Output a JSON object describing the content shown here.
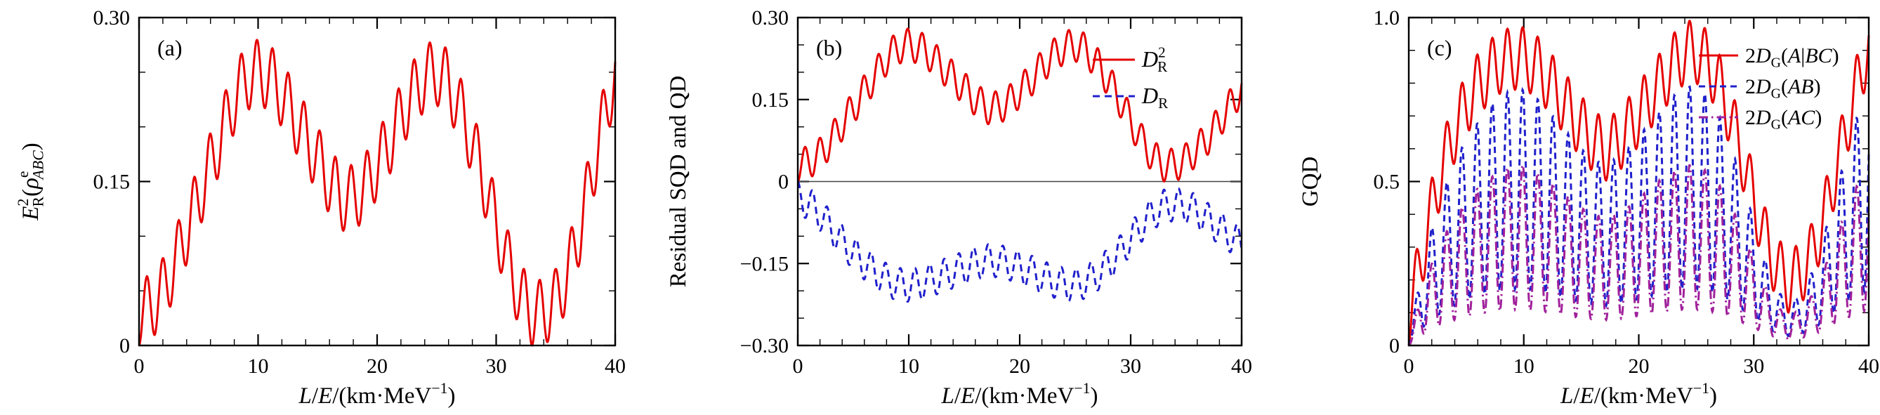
{
  "figure": {
    "background": "#ffffff",
    "frame_color": "#000000",
    "zero_line_color": "#444444"
  },
  "chart_data": [
    {
      "type": "line",
      "tag": "(a)",
      "xlabel_text": "L/E/(km·MeV^-1)",
      "xlabel_segments": [
        {
          "t": "L",
          "i": 1
        },
        {
          "t": "/"
        },
        {
          "t": "E",
          "i": 1
        },
        {
          "t": "/(km·MeV"
        },
        {
          "sup": "−1"
        },
        {
          "t": ")"
        }
      ],
      "ylabel_text": "E_R^2(rho_ABC^e)",
      "ylabel_segments": [
        {
          "t": "E",
          "i": 1
        },
        {
          "ss": {
            "top": "2",
            "bot": "R"
          }
        },
        {
          "t": "("
        },
        {
          "t": "ρ",
          "i": 1
        },
        {
          "ss": {
            "top": "e",
            "bot": "ABC",
            "bi": 1
          }
        },
        {
          "t": ")"
        }
      ],
      "x_axis": {
        "min": 0,
        "max": 40,
        "major": [
          0,
          10,
          20,
          30,
          40
        ],
        "labels": [
          "0",
          "10",
          "20",
          "30",
          "40"
        ],
        "minor_step": 2
      },
      "y_axis": {
        "min": 0,
        "max": 0.3,
        "major": [
          0,
          0.15,
          0.3
        ],
        "labels": [
          "0",
          "0.15",
          "0.30"
        ],
        "minor_step": 0.05
      },
      "zero_line": false,
      "grid": false,
      "series": [
        {
          "name": "E_R^2(rho_ABC^e)",
          "color": "#e50000",
          "dash": "none",
          "width": 3,
          "envelope_step": 1,
          "envelope": [
            0,
            0.005,
            0.02,
            0.045,
            0.075,
            0.105,
            0.135,
            0.165,
            0.195,
            0.215,
            0.22,
            0.215,
            0.2,
            0.18,
            0.16,
            0.14,
            0.12,
            0.105,
            0.105,
            0.115,
            0.135,
            0.155,
            0.18,
            0.2,
            0.215,
            0.22,
            0.21,
            0.185,
            0.155,
            0.12,
            0.08,
            0.045,
            0.015,
            0,
            0,
            0.01,
            0.035,
            0.075,
            0.125,
            0.175,
            0.22
          ],
          "model": {
            "kind": "add",
            "amp": 0.06,
            "period": 1.32,
            "phase": 0,
            "sign": 1
          }
        }
      ]
    },
    {
      "type": "line",
      "tag": "(b)",
      "xlabel_text": "L/E/(km·MeV^-1)",
      "xlabel_segments": [
        {
          "t": "L",
          "i": 1
        },
        {
          "t": "/"
        },
        {
          "t": "E",
          "i": 1
        },
        {
          "t": "/(km·MeV"
        },
        {
          "sup": "−1"
        },
        {
          "t": ")"
        }
      ],
      "ylabel_text": "Residual SQD and QD",
      "ylabel_segments": [
        {
          "t": "Residual SQD and QD"
        }
      ],
      "x_axis": {
        "min": 0,
        "max": 40,
        "major": [
          0,
          10,
          20,
          30,
          40
        ],
        "labels": [
          "0",
          "10",
          "20",
          "30",
          "40"
        ],
        "minor_step": 2
      },
      "y_axis": {
        "min": -0.3,
        "max": 0.3,
        "major": [
          -0.3,
          -0.15,
          0,
          0.15,
          0.3
        ],
        "labels": [
          "−0.30",
          "−0.15",
          "0",
          "0.15",
          "0.30"
        ],
        "minor_step": 0.05
      },
      "zero_line": true,
      "grid": false,
      "legend": {
        "position": "top-right",
        "entries": [
          {
            "series": 0,
            "label": "D_R^2",
            "segments": [
              {
                "t": "D",
                "i": 1
              },
              {
                "ss": {
                  "top": "2",
                  "bot": "R"
                }
              }
            ]
          },
          {
            "series": 1,
            "label": "D_R",
            "segments": [
              {
                "t": "D",
                "i": 1
              },
              {
                "sub": "R"
              }
            ]
          }
        ]
      },
      "series": [
        {
          "name": "D_R^2",
          "color": "#e50000",
          "dash": "none",
          "width": 3,
          "envelope_step": 1,
          "envelope": [
            0,
            0.005,
            0.02,
            0.045,
            0.075,
            0.105,
            0.135,
            0.165,
            0.195,
            0.215,
            0.22,
            0.215,
            0.2,
            0.18,
            0.16,
            0.14,
            0.12,
            0.105,
            0.105,
            0.115,
            0.135,
            0.155,
            0.18,
            0.2,
            0.215,
            0.22,
            0.21,
            0.185,
            0.155,
            0.12,
            0.08,
            0.045,
            0.015,
            0,
            0,
            0.01,
            0.03,
            0.05,
            0.08,
            0.11,
            0.14
          ],
          "model": {
            "kind": "add",
            "amp": 0.06,
            "period": 1.32,
            "phase": 0,
            "sign": 1
          }
        },
        {
          "name": "D_R",
          "color": "#2020cc",
          "dash": "10 7",
          "width": 3,
          "envelope_step": 1,
          "envelope": [
            0,
            0.01,
            0.03,
            0.055,
            0.08,
            0.1,
            0.12,
            0.135,
            0.15,
            0.158,
            0.16,
            0.157,
            0.15,
            0.143,
            0.135,
            0.128,
            0.12,
            0.115,
            0.115,
            0.12,
            0.128,
            0.135,
            0.145,
            0.152,
            0.158,
            0.16,
            0.153,
            0.14,
            0.122,
            0.1,
            0.075,
            0.05,
            0.028,
            0.015,
            0.012,
            0.015,
            0.025,
            0.04,
            0.055,
            0.07,
            0.085
          ],
          "model": {
            "kind": "add",
            "amp": 0.06,
            "period": 1.32,
            "phase": 0,
            "sign": -1
          }
        }
      ]
    },
    {
      "type": "line",
      "tag": "(c)",
      "xlabel_text": "L/E/(km·MeV^-1)",
      "xlabel_segments": [
        {
          "t": "L",
          "i": 1
        },
        {
          "t": "/"
        },
        {
          "t": "E",
          "i": 1
        },
        {
          "t": "/(km·MeV"
        },
        {
          "sup": "−1"
        },
        {
          "t": ")"
        }
      ],
      "ylabel_text": "GQD",
      "ylabel_segments": [
        {
          "t": "GQD"
        }
      ],
      "x_axis": {
        "min": 0,
        "max": 40,
        "major": [
          0,
          10,
          20,
          30,
          40
        ],
        "labels": [
          "0",
          "10",
          "20",
          "30",
          "40"
        ],
        "minor_step": 2
      },
      "y_axis": {
        "min": 0,
        "max": 1.0,
        "major": [
          0,
          0.5,
          1.0
        ],
        "labels": [
          "0",
          "0.5",
          "1.0"
        ],
        "minor_step": 0.1
      },
      "zero_line": false,
      "grid": false,
      "legend": {
        "position": "top-right",
        "entries": [
          {
            "series": 0,
            "label": "2D_G(A|BC)",
            "segments": [
              {
                "t": "2"
              },
              {
                "t": "D",
                "i": 1
              },
              {
                "sub": "G"
              },
              {
                "t": "("
              },
              {
                "t": "A",
                "i": 1
              },
              {
                "t": "|"
              },
              {
                "t": "BC",
                "i": 1
              },
              {
                "t": ")"
              }
            ]
          },
          {
            "series": 1,
            "label": "2D_G(AB)",
            "segments": [
              {
                "t": "2"
              },
              {
                "t": "D",
                "i": 1
              },
              {
                "sub": "G"
              },
              {
                "t": "("
              },
              {
                "t": "AB",
                "i": 1
              },
              {
                "t": ")"
              }
            ]
          },
          {
            "series": 2,
            "label": "2D_G(AC)",
            "segments": [
              {
                "t": "2"
              },
              {
                "t": "D",
                "i": 1
              },
              {
                "sub": "G"
              },
              {
                "t": "("
              },
              {
                "t": "AC",
                "i": 1
              },
              {
                "t": ")"
              }
            ]
          }
        ]
      },
      "series": [
        {
          "name": "2D_G(A|BC)",
          "color": "#e50000",
          "dash": "none",
          "width": 3,
          "envelope_step": 1,
          "envelope": [
            0,
            0.15,
            0.32,
            0.46,
            0.56,
            0.64,
            0.7,
            0.74,
            0.77,
            0.78,
            0.78,
            0.76,
            0.72,
            0.67,
            0.62,
            0.57,
            0.53,
            0.5,
            0.52,
            0.56,
            0.61,
            0.66,
            0.71,
            0.76,
            0.8,
            0.8,
            0.77,
            0.7,
            0.6,
            0.48,
            0.35,
            0.23,
            0.14,
            0.1,
            0.12,
            0.18,
            0.28,
            0.42,
            0.56,
            0.7,
            0.82
          ],
          "model": {
            "kind": "add",
            "amp": 0.19,
            "period": 1.32,
            "phase": 0,
            "sign": 1
          }
        },
        {
          "name": "2D_G(AB)",
          "color": "#2020cc",
          "dash": "9 6",
          "width": 3,
          "envelope_step": 1,
          "envelope": [
            0,
            0.22,
            0.36,
            0.47,
            0.56,
            0.63,
            0.68,
            0.73,
            0.76,
            0.78,
            0.78,
            0.76,
            0.72,
            0.68,
            0.64,
            0.6,
            0.57,
            0.55,
            0.57,
            0.6,
            0.64,
            0.68,
            0.72,
            0.76,
            0.79,
            0.79,
            0.76,
            0.7,
            0.61,
            0.5,
            0.38,
            0.26,
            0.17,
            0.13,
            0.15,
            0.22,
            0.32,
            0.45,
            0.58,
            0.7,
            0.79
          ],
          "model": {
            "kind": "mult",
            "base": 0.22,
            "period": 1.32,
            "phase": 0,
            "sign": 1
          }
        },
        {
          "name": "2D_G(AC)",
          "color": "#a1219b",
          "dash": "13 5 2.5 5",
          "width": 3,
          "envelope_step": 1,
          "envelope": [
            0,
            0.15,
            0.25,
            0.33,
            0.39,
            0.44,
            0.48,
            0.51,
            0.53,
            0.55,
            0.55,
            0.53,
            0.51,
            0.48,
            0.45,
            0.42,
            0.4,
            0.39,
            0.4,
            0.42,
            0.45,
            0.48,
            0.51,
            0.53,
            0.55,
            0.55,
            0.53,
            0.49,
            0.43,
            0.35,
            0.27,
            0.18,
            0.12,
            0.09,
            0.11,
            0.15,
            0.22,
            0.32,
            0.41,
            0.49,
            0.55
          ],
          "model": {
            "kind": "mult",
            "base": 0.2,
            "period": 1.32,
            "phase": 0,
            "sign": 1
          }
        }
      ]
    }
  ]
}
